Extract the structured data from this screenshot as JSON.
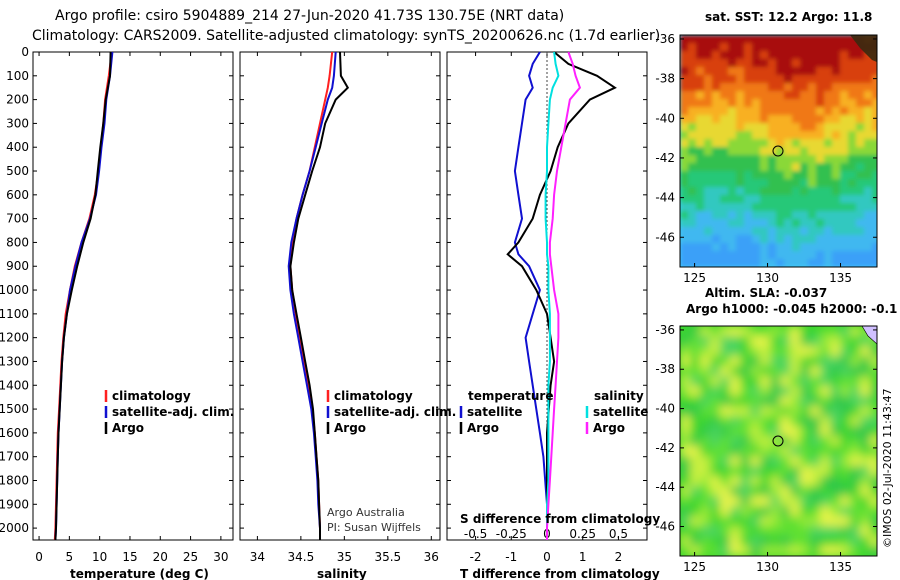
{
  "title_line1": "Argo profile: csiro 5904889_214 27-Jun-2020 41.73S 130.75E (NRT data)",
  "title_line2": "Climatology: CARS2009. Satellite-adjusted climatology: synTS_20200626.nc (1.7d earlier)",
  "sst_title": "sat. SST: 12.2 Argo: 11.8",
  "sla_title1": "Altim. SLA: -0.037",
  "sla_title2": "Argo h1000: -0.045 h2000: -0.1",
  "stamp": "©IMOS 02-Jul-2020 11:43:47",
  "credit1": "Argo Australia",
  "credit2": "PI: Susan Wijffels",
  "colors": {
    "climatology": "#ff2020",
    "satellite": "#1010d0",
    "argo": "#000000",
    "sal_sat": "#00e0e0",
    "sal_argo": "#ff20ff"
  },
  "depth_axis": {
    "ylim": [
      0,
      2050
    ],
    "ticks": [
      0,
      100,
      200,
      300,
      400,
      500,
      600,
      700,
      800,
      900,
      1000,
      1100,
      1200,
      1300,
      1400,
      1500,
      1600,
      1700,
      1800,
      1900,
      2000
    ]
  },
  "chart_data": [
    {
      "type": "line",
      "id": "temperature",
      "xlabel": "temperature (deg C)",
      "ylabel": "depth",
      "xlim": [
        -1,
        32
      ],
      "xticks": [
        "0",
        "5",
        "10",
        "15",
        "20",
        "25",
        "30"
      ],
      "legend": [
        "climatology",
        "satellite-adj. clim.",
        "Argo"
      ],
      "depth": [
        0,
        100,
        200,
        300,
        400,
        500,
        600,
        700,
        800,
        900,
        1000,
        1100,
        1200,
        1300,
        1400,
        1500,
        1600,
        1700,
        1800,
        1900,
        2000,
        2050
      ],
      "series": [
        {
          "name": "climatology",
          "color": "#ff2020",
          "values": [
            12.0,
            11.5,
            10.9,
            10.6,
            10.2,
            9.8,
            9.2,
            8.3,
            7.0,
            5.9,
            5.1,
            4.4,
            4.0,
            3.7,
            3.5,
            3.3,
            3.1,
            3.0,
            2.9,
            2.8,
            2.7,
            2.6
          ]
        },
        {
          "name": "satellite-adj. clim.",
          "color": "#1010d0",
          "values": [
            12.1,
            11.7,
            11.1,
            10.8,
            10.3,
            9.9,
            9.4,
            8.4,
            7.0,
            6.0,
            5.1,
            4.6,
            4.1,
            3.8,
            3.6,
            3.4,
            3.2,
            3.1,
            3.0,
            2.9,
            2.8,
            2.7
          ]
        },
        {
          "name": "Argo",
          "color": "#000000",
          "values": [
            11.8,
            11.7,
            11.0,
            10.6,
            10.1,
            9.7,
            9.3,
            8.5,
            7.3,
            6.3,
            5.4,
            4.6,
            4.1,
            3.8,
            3.6,
            3.4,
            3.2,
            3.1,
            3.0,
            2.9,
            2.8,
            2.7
          ]
        }
      ]
    },
    {
      "type": "line",
      "id": "salinity",
      "xlabel": "salinity",
      "ylabel": "depth",
      "xlim": [
        33.8,
        36.1
      ],
      "xticks": [
        "34",
        "34.5",
        "35",
        "35.5",
        "36"
      ],
      "legend": [
        "climatology",
        "satellite-adj. clim.",
        "Argo"
      ],
      "depth": [
        0,
        100,
        150,
        200,
        300,
        400,
        500,
        600,
        700,
        800,
        900,
        1000,
        1100,
        1200,
        1300,
        1400,
        1500,
        1600,
        1700,
        1800,
        1900,
        2000,
        2050
      ],
      "series": [
        {
          "name": "climatology",
          "color": "#ff2020",
          "values": [
            34.86,
            34.83,
            34.81,
            34.78,
            34.72,
            34.66,
            34.6,
            34.52,
            34.45,
            34.4,
            34.38,
            34.4,
            34.44,
            34.49,
            34.54,
            34.59,
            34.63,
            34.66,
            34.68,
            34.7,
            34.71,
            34.72,
            34.72
          ]
        },
        {
          "name": "satellite-adj. clim.",
          "color": "#1010d0",
          "values": [
            34.9,
            34.88,
            34.86,
            34.81,
            34.74,
            34.67,
            34.6,
            34.52,
            34.45,
            34.39,
            34.36,
            34.38,
            34.42,
            34.47,
            34.52,
            34.57,
            34.62,
            34.65,
            34.67,
            34.69,
            34.7,
            34.72,
            34.72
          ]
        },
        {
          "name": "Argo",
          "color": "#000000",
          "values": [
            34.95,
            34.96,
            35.04,
            34.9,
            34.78,
            34.72,
            34.63,
            34.55,
            34.47,
            34.42,
            34.38,
            34.4,
            34.45,
            34.5,
            34.55,
            34.6,
            34.64,
            34.66,
            34.68,
            34.7,
            34.71,
            34.72,
            34.72
          ]
        }
      ]
    },
    {
      "type": "line",
      "id": "difference",
      "xlabel": "T difference from climatology",
      "top_xlabel": "S difference from climatology",
      "xlim": [
        -2.8,
        2.8
      ],
      "xticks": [
        "-2",
        "-1",
        "0",
        "1",
        "2"
      ],
      "top_ticks": [
        "-0.5",
        "-0.25",
        "0",
        "0.25",
        "0.5"
      ],
      "legend_left_title": "temperature",
      "legend_right_title": "salinity",
      "legend": [
        "satellite",
        "Argo"
      ],
      "depth": [
        0,
        50,
        100,
        150,
        200,
        300,
        400,
        500,
        600,
        700,
        800,
        850,
        900,
        1000,
        1100,
        1200,
        1300,
        1400,
        1500,
        1600,
        1700,
        1800,
        1900,
        2000,
        2050
      ],
      "series": [
        {
          "name": "T satellite",
          "color": "#1010d0",
          "values": [
            -0.2,
            -0.4,
            -0.5,
            -0.4,
            -0.6,
            -0.7,
            -0.8,
            -0.9,
            -0.8,
            -0.7,
            -0.9,
            -0.8,
            -0.5,
            -0.2,
            -0.4,
            -0.6,
            -0.5,
            -0.4,
            -0.3,
            -0.2,
            -0.1,
            -0.05,
            0.0,
            0.0,
            0.0
          ]
        },
        {
          "name": "T Argo",
          "color": "#000000",
          "values": [
            0.2,
            0.6,
            1.4,
            1.9,
            1.2,
            0.6,
            0.3,
            0.1,
            -0.2,
            -0.4,
            -0.8,
            -1.1,
            -0.7,
            -0.3,
            0.0,
            0.1,
            0.2,
            0.1,
            0.05,
            0.0,
            0.0,
            0.0,
            0.0,
            0.0,
            0.0
          ]
        },
        {
          "name": "S satellite",
          "color": "#00e0e0",
          "values": [
            0.05,
            0.06,
            0.08,
            0.04,
            0.02,
            0.01,
            0.0,
            0.0,
            -0.01,
            -0.01,
            0.0,
            0.0,
            0.01,
            0.01,
            0.02,
            0.02,
            0.02,
            0.01,
            0.01,
            0.01,
            0.01,
            0.01,
            0.0,
            0.0,
            0.0
          ]
        },
        {
          "name": "S Argo",
          "color": "#ff20ff",
          "values": [
            0.15,
            0.18,
            0.2,
            0.23,
            0.16,
            0.13,
            0.1,
            0.07,
            0.05,
            0.04,
            0.02,
            0.02,
            0.03,
            0.05,
            0.08,
            0.08,
            0.07,
            0.06,
            0.05,
            0.04,
            0.03,
            0.02,
            0.01,
            0.0,
            0.0
          ]
        }
      ]
    },
    {
      "type": "heatmap",
      "id": "sst_map",
      "title": "sat. SST: 12.2 Argo: 11.8",
      "xlim": [
        124,
        137.5
      ],
      "ylim": [
        -47.5,
        -35.8
      ],
      "xticks": [
        "125",
        "130",
        "135"
      ],
      "yticks": [
        "-36",
        "-38",
        "-40",
        "-42",
        "-44",
        "-46"
      ],
      "argo_position": {
        "lon": 130.75,
        "lat": -41.73
      }
    },
    {
      "type": "heatmap",
      "id": "sla_map",
      "title": "Altim. SLA: -0.037",
      "xlim": [
        124,
        137.5
      ],
      "ylim": [
        -47.5,
        -35.8
      ],
      "xticks": [
        "125",
        "130",
        "135"
      ],
      "yticks": [
        "-36",
        "-38",
        "-40",
        "-42",
        "-44",
        "-46"
      ],
      "argo_position": {
        "lon": 130.75,
        "lat": -41.73
      }
    }
  ]
}
